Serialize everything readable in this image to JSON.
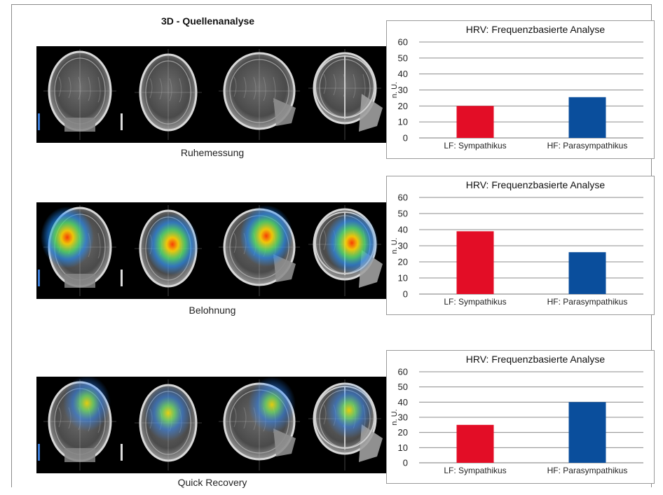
{
  "main_title": "3D - Quellenanalyse",
  "rows": [
    {
      "caption": "Ruhemessung",
      "activation": "none",
      "chart": {
        "type": "bar",
        "title": "HRV: Frequenzbasierte Analyse",
        "ylabel": "n. U.",
        "categories": [
          "LF: Sympathikus",
          "HF: Parasympathikus"
        ],
        "values": [
          20,
          25.5
        ],
        "colors": [
          "#e30d26",
          "#0a4e9c"
        ],
        "ylim": [
          0,
          60
        ],
        "yticks": [
          "0",
          "10",
          "20",
          "30",
          "40",
          "50",
          "60"
        ],
        "grid": true
      }
    },
    {
      "caption": "Belohnung",
      "activation": "strong",
      "chart": {
        "type": "bar",
        "title": "HRV: Frequenzbasierte Analyse",
        "ylabel": "n. U.",
        "categories": [
          "LF: Sympathikus",
          "HF: Parasympathikus"
        ],
        "values": [
          39,
          26
        ],
        "colors": [
          "#e30d26",
          "#0a4e9c"
        ],
        "ylim": [
          0,
          60
        ],
        "yticks": [
          "0",
          "10",
          "20",
          "30",
          "40",
          "50",
          "60"
        ],
        "grid": true
      }
    },
    {
      "caption": "Quick Recovery",
      "activation": "moderate",
      "chart": {
        "type": "bar",
        "title": "HRV: Frequenzbasierte Analyse",
        "ylabel": "n. U.",
        "categories": [
          "LF: Sympathikus",
          "HF: Parasympathikus"
        ],
        "values": [
          25,
          40
        ],
        "colors": [
          "#e30d26",
          "#0a4e9c"
        ],
        "ylim": [
          0,
          60
        ],
        "yticks": [
          "0",
          "10",
          "20",
          "30",
          "40",
          "50",
          "60"
        ],
        "grid": true
      }
    }
  ]
}
